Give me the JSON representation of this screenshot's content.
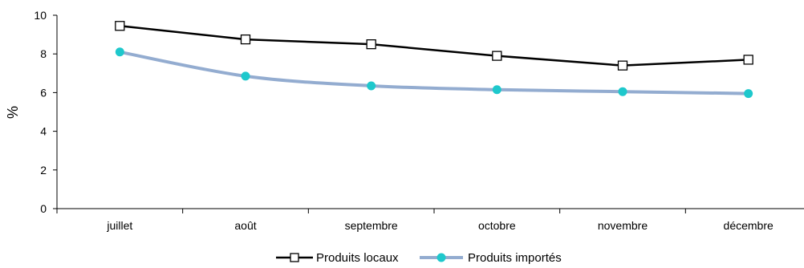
{
  "chart_data": {
    "type": "line",
    "title": "",
    "xlabel": "",
    "ylabel": "%",
    "categories": [
      "juillet",
      "août",
      "septembre",
      "octobre",
      "novembre",
      "décembre"
    ],
    "ylim": [
      0,
      10
    ],
    "yticks": [
      0,
      2,
      4,
      6,
      8,
      10
    ],
    "grid": false,
    "legend_position": "bottom-center",
    "series": [
      {
        "name": "Produits locaux",
        "values": [
          9.45,
          8.75,
          8.5,
          7.9,
          7.4,
          7.7
        ],
        "color": "#000000",
        "marker": "open-square"
      },
      {
        "name": "Produits importés",
        "values": [
          8.1,
          6.85,
          6.35,
          6.15,
          6.05,
          5.95
        ],
        "color": "#93acd0",
        "marker_color": "#1ec8cc",
        "marker": "filled-circle"
      }
    ]
  }
}
